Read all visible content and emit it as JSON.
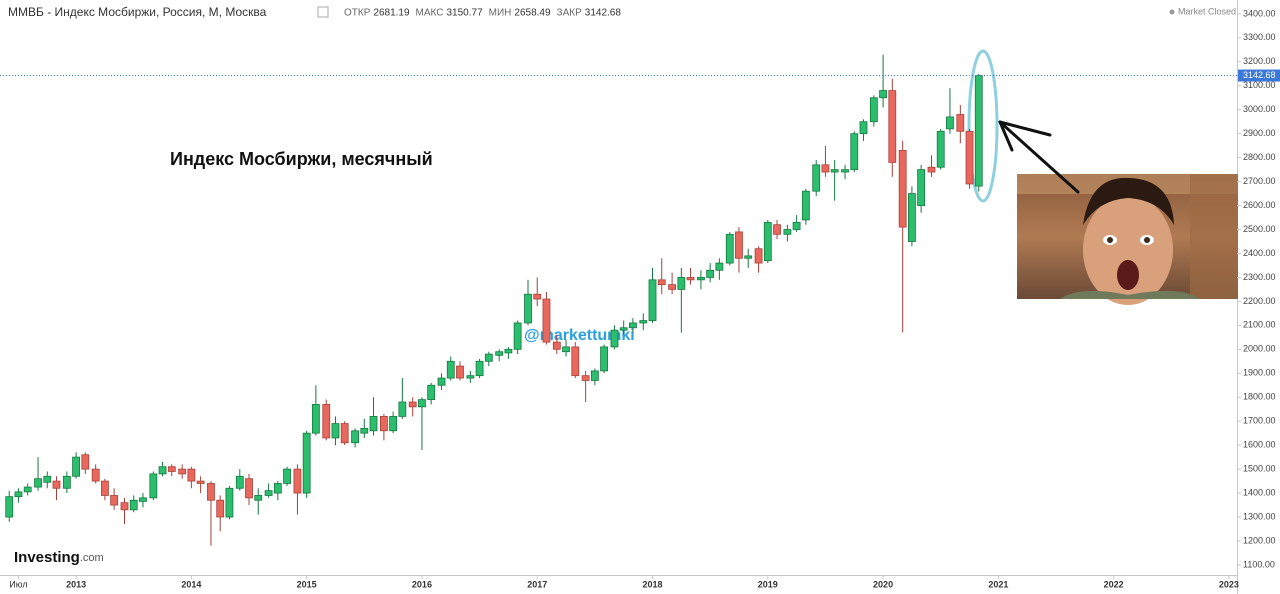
{
  "chart_data": {
    "type": "candlestick",
    "title": "ММВБ - Индекс Мосбиржи, Россия, М, Москва",
    "ohlc_labels": [
      "ОТКР",
      "МАКС",
      "МИН",
      "ЗАКР"
    ],
    "status": "Market Closed",
    "annotations": [
      "Индекс Мосбиржи, месячный",
      "@markettumki"
    ],
    "logo": {
      "brand": "Investing",
      "suffix": ".com"
    },
    "up_color": "#2dbd6e",
    "down_color": "#e8685e",
    "price_line_color": "#3c78d8",
    "xlim": [
      2012.34,
      2023.07
    ],
    "ylim": [
      1058,
      3458
    ],
    "xticks": [
      {
        "value": 2012.5,
        "label": "Июл"
      },
      2013,
      2014,
      2015,
      2016,
      2017,
      2018,
      2019,
      2020,
      2021,
      2022,
      2023
    ],
    "yticks": [
      {
        "value": 1100,
        "label": "1100.00"
      },
      {
        "value": 1200,
        "label": "1200.00"
      },
      {
        "value": 1300,
        "label": "1300.00"
      },
      {
        "value": 1400,
        "label": "1400.00"
      },
      {
        "value": 1500,
        "label": "1500.00"
      },
      {
        "value": 1600,
        "label": "1600.00"
      },
      {
        "value": 1700,
        "label": "1700.00"
      },
      {
        "value": 1800,
        "label": "1800.00"
      },
      {
        "value": 1900,
        "label": "1900.00"
      },
      {
        "value": 2000,
        "label": "2000.00"
      },
      {
        "value": 2100,
        "label": "2100.00"
      },
      {
        "value": 2200,
        "label": "2200.00"
      },
      {
        "value": 2300,
        "label": "2300.00"
      },
      {
        "value": 2400,
        "label": "2400.00"
      },
      {
        "value": 2500,
        "label": "2500.00"
      },
      {
        "value": 2600,
        "label": "2600.00"
      },
      {
        "value": 2700,
        "label": "2700.00"
      },
      {
        "value": 2800,
        "label": "2800.00"
      },
      {
        "value": 2900,
        "label": "2900.00"
      },
      {
        "value": 3000,
        "label": "3000.00"
      },
      {
        "value": 3100,
        "label": "3100.00"
      },
      {
        "value": 3200,
        "label": "3200.00"
      },
      {
        "value": 3300,
        "label": "3300.00"
      },
      {
        "value": 3400,
        "label": "3400.00"
      }
    ],
    "x": [
      2012.42,
      2012.5,
      2012.58,
      2012.67,
      2012.75,
      2012.83,
      2012.92,
      2013,
      2013.08,
      2013.17,
      2013.25,
      2013.33,
      2013.42,
      2013.5,
      2013.58,
      2013.67,
      2013.75,
      2013.83,
      2013.92,
      2014,
      2014.08,
      2014.17,
      2014.25,
      2014.33,
      2014.42,
      2014.5,
      2014.58,
      2014.67,
      2014.75,
      2014.83,
      2014.92,
      2015,
      2015.08,
      2015.17,
      2015.25,
      2015.33,
      2015.42,
      2015.5,
      2015.58,
      2015.67,
      2015.75,
      2015.83,
      2015.92,
      2016,
      2016.08,
      2016.17,
      2016.25,
      2016.33,
      2016.42,
      2016.5,
      2016.58,
      2016.67,
      2016.75,
      2016.83,
      2016.92,
      2017,
      2017.08,
      2017.17,
      2017.25,
      2017.33,
      2017.42,
      2017.5,
      2017.58,
      2017.67,
      2017.75,
      2017.83,
      2017.92,
      2018,
      2018.08,
      2018.17,
      2018.25,
      2018.33,
      2018.42,
      2018.5,
      2018.58,
      2018.67,
      2018.75,
      2018.83,
      2018.92,
      2019,
      2019.08,
      2019.17,
      2019.25,
      2019.33,
      2019.42,
      2019.5,
      2019.58,
      2019.67,
      2019.75,
      2019.83,
      2019.92,
      2020,
      2020.08,
      2020.17,
      2020.25,
      2020.33,
      2020.42,
      2020.5,
      2020.58,
      2020.67,
      2020.75,
      2020.83
    ],
    "open": [
      1300,
      1385,
      1405,
      1425,
      1445,
      1450,
      1420,
      1470,
      1560,
      1500,
      1450,
      1390,
      1360,
      1330,
      1365,
      1380,
      1480,
      1510,
      1500,
      1500,
      1450,
      1440,
      1370,
      1300,
      1420,
      1460,
      1370,
      1390,
      1400,
      1440,
      1500,
      1400,
      1650,
      1770,
      1630,
      1690,
      1610,
      1650,
      1660,
      1720,
      1660,
      1720,
      1780,
      1760,
      1790,
      1850,
      1880,
      1930,
      1880,
      1890,
      1950,
      1975,
      1985,
      2000,
      2110,
      2230,
      2210,
      2030,
      1990,
      2010,
      1890,
      1870,
      1910,
      2010,
      2080,
      2090,
      2110,
      2120,
      2290,
      2270,
      2250,
      2300,
      2290,
      2300,
      2330,
      2360,
      2490,
      2380,
      2420,
      2370,
      2520,
      2480,
      2500,
      2540,
      2660,
      2770,
      2740,
      2740,
      2750,
      2900,
      2950,
      3050,
      3080,
      2830,
      2450,
      2600,
      2760,
      2760,
      2920,
      2980,
      2910,
      2681.19
    ],
    "high": [
      1410,
      1420,
      1440,
      1550,
      1490,
      1470,
      1490,
      1570,
      1570,
      1520,
      1460,
      1420,
      1380,
      1390,
      1400,
      1490,
      1530,
      1520,
      1520,
      1510,
      1470,
      1450,
      1390,
      1430,
      1500,
      1480,
      1420,
      1440,
      1450,
      1510,
      1520,
      1660,
      1850,
      1790,
      1720,
      1700,
      1670,
      1710,
      1800,
      1730,
      1740,
      1880,
      1800,
      1800,
      1860,
      1900,
      1970,
      1950,
      1910,
      1960,
      1990,
      2000,
      2010,
      2120,
      2290,
      2300,
      2240,
      2060,
      2040,
      2030,
      1910,
      1920,
      2020,
      2100,
      2120,
      2130,
      2150,
      2340,
      2380,
      2320,
      2340,
      2340,
      2330,
      2360,
      2380,
      2490,
      2510,
      2420,
      2430,
      2540,
      2540,
      2520,
      2560,
      2670,
      2790,
      2850,
      2790,
      2770,
      2910,
      2960,
      3060,
      3230,
      3130,
      2870,
      2680,
      2770,
      2810,
      2920,
      3090,
      3020,
      2920,
      3150.77
    ],
    "low": [
      1280,
      1360,
      1390,
      1410,
      1420,
      1370,
      1400,
      1460,
      1480,
      1440,
      1370,
      1330,
      1270,
      1320,
      1340,
      1370,
      1470,
      1470,
      1460,
      1420,
      1400,
      1180,
      1240,
      1290,
      1410,
      1350,
      1310,
      1380,
      1370,
      1430,
      1310,
      1380,
      1640,
      1620,
      1600,
      1600,
      1590,
      1630,
      1640,
      1620,
      1650,
      1710,
      1720,
      1580,
      1770,
      1830,
      1870,
      1870,
      1860,
      1880,
      1930,
      1950,
      1960,
      1980,
      2100,
      2180,
      2020,
      1980,
      1970,
      1880,
      1780,
      1850,
      1900,
      2000,
      2060,
      2070,
      2080,
      2110,
      2230,
      2230,
      2070,
      2270,
      2250,
      2280,
      2290,
      2350,
      2320,
      2340,
      2320,
      2360,
      2460,
      2450,
      2490,
      2520,
      2640,
      2720,
      2620,
      2710,
      2740,
      2870,
      2930,
      3010,
      2720,
      2070,
      2430,
      2570,
      2720,
      2750,
      2900,
      2860,
      2670,
      2658.49
    ],
    "close": [
      1385,
      1405,
      1425,
      1460,
      1470,
      1420,
      1470,
      1550,
      1500,
      1450,
      1390,
      1350,
      1330,
      1370,
      1380,
      1480,
      1510,
      1490,
      1480,
      1450,
      1440,
      1370,
      1300,
      1420,
      1470,
      1380,
      1390,
      1410,
      1440,
      1500,
      1400,
      1650,
      1770,
      1630,
      1690,
      1610,
      1660,
      1670,
      1720,
      1660,
      1720,
      1780,
      1760,
      1790,
      1850,
      1880,
      1950,
      1880,
      1890,
      1950,
      1980,
      1990,
      2000,
      2110,
      2230,
      2210,
      2030,
      2000,
      2010,
      1890,
      1870,
      1910,
      2010,
      2080,
      2090,
      2110,
      2120,
      2290,
      2270,
      2250,
      2300,
      2290,
      2300,
      2330,
      2360,
      2480,
      2380,
      2390,
      2360,
      2530,
      2480,
      2500,
      2530,
      2660,
      2770,
      2740,
      2750,
      2750,
      2900,
      2950,
      3050,
      3080,
      2780,
      2510,
      2650,
      2750,
      2740,
      2910,
      2970,
      2910,
      2690,
      3142.68
    ]
  }
}
